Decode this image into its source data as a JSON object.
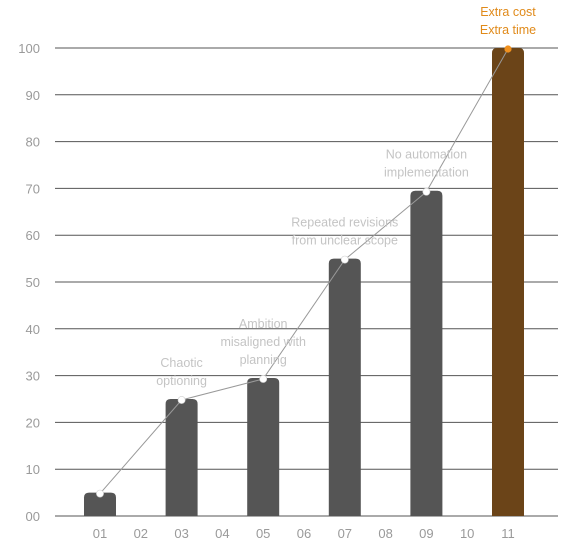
{
  "chart_data": {
    "type": "bar",
    "title": "",
    "xlabel": "",
    "ylabel": "",
    "ylim": [
      0,
      100
    ],
    "yticks": [
      0,
      10,
      20,
      30,
      40,
      50,
      60,
      70,
      80,
      90,
      100
    ],
    "categories": [
      "01",
      "02",
      "03",
      "04",
      "05",
      "06",
      "07",
      "08",
      "09",
      "10",
      "11"
    ],
    "values": [
      5,
      null,
      25,
      null,
      29.5,
      null,
      55,
      null,
      69.5,
      null,
      100
    ],
    "grid": true,
    "colors": {
      "bar": "#555555",
      "highlight_bar": "#6b4418",
      "line": "#999999",
      "point": "#ffffff",
      "highlight_point": "#f0901e",
      "grid": "#555555",
      "tick_text": "#9a9a9a",
      "annotation_text": "#c4c4c4",
      "highlight_text": "#e08a1a"
    },
    "highlight_index": 10,
    "annotations": [
      {
        "category": "03",
        "lines": [
          "Chaotic",
          "optioning"
        ]
      },
      {
        "category": "05",
        "lines": [
          "Ambition",
          "misaligned with",
          "planning"
        ]
      },
      {
        "category": "07",
        "lines": [
          "Repeated revisions",
          "from unclear scope"
        ]
      },
      {
        "category": "09",
        "lines": [
          "No automation",
          "implementation"
        ]
      },
      {
        "category": "11",
        "lines": [
          "Extra cost",
          "Extra time"
        ],
        "highlight": true
      }
    ]
  }
}
